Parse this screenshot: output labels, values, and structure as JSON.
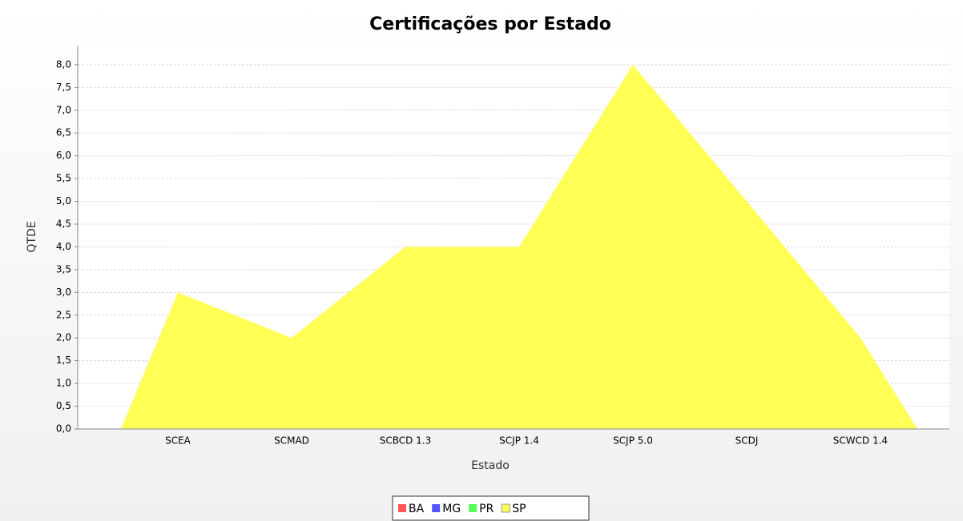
{
  "chart_data": {
    "type": "area",
    "title": "Certificações por Estado",
    "x_label": "Estado",
    "y_label": "QTDE",
    "categories": [
      "SCEA",
      "SCMAD",
      "SCBCD 1.3",
      "SCJP 1.4",
      "SCJP 5.0",
      "SCDJ",
      "SCWCD 1.4"
    ],
    "series": [
      {
        "name": "BA",
        "color": "#ff5555",
        "values": [
          null,
          null,
          null,
          null,
          null,
          null,
          null
        ]
      },
      {
        "name": "MG",
        "color": "#5555ff",
        "values": [
          null,
          null,
          null,
          null,
          null,
          null,
          null
        ]
      },
      {
        "name": "PR",
        "color": "#55ff55",
        "values": [
          null,
          null,
          null,
          null,
          null,
          null,
          null
        ]
      },
      {
        "name": "SP",
        "color": "#ffff55",
        "values": [
          3,
          2,
          4,
          4,
          8,
          5,
          2
        ]
      }
    ],
    "ylim": [
      0,
      8.42
    ],
    "yticks": [
      {
        "value": 0,
        "label": "0,0"
      },
      {
        "value": 0.5,
        "label": "0,5"
      },
      {
        "value": 1,
        "label": "1,0"
      },
      {
        "value": 1.5,
        "label": "1,5"
      },
      {
        "value": 2,
        "label": "2,0"
      },
      {
        "value": 2.5,
        "label": "2,5"
      },
      {
        "value": 3,
        "label": "3,0"
      },
      {
        "value": 3.5,
        "label": "3,5"
      },
      {
        "value": 4,
        "label": "4,0"
      },
      {
        "value": 4.5,
        "label": "4,5"
      },
      {
        "value": 5,
        "label": "5,0"
      },
      {
        "value": 5.5,
        "label": "5,5"
      },
      {
        "value": 6,
        "label": "6,0"
      },
      {
        "value": 6.5,
        "label": "6,5"
      },
      {
        "value": 7,
        "label": "7,0"
      },
      {
        "value": 7.5,
        "label": "7,5"
      },
      {
        "value": 8,
        "label": "8,0"
      }
    ],
    "grid": true,
    "legend": "bottom"
  }
}
